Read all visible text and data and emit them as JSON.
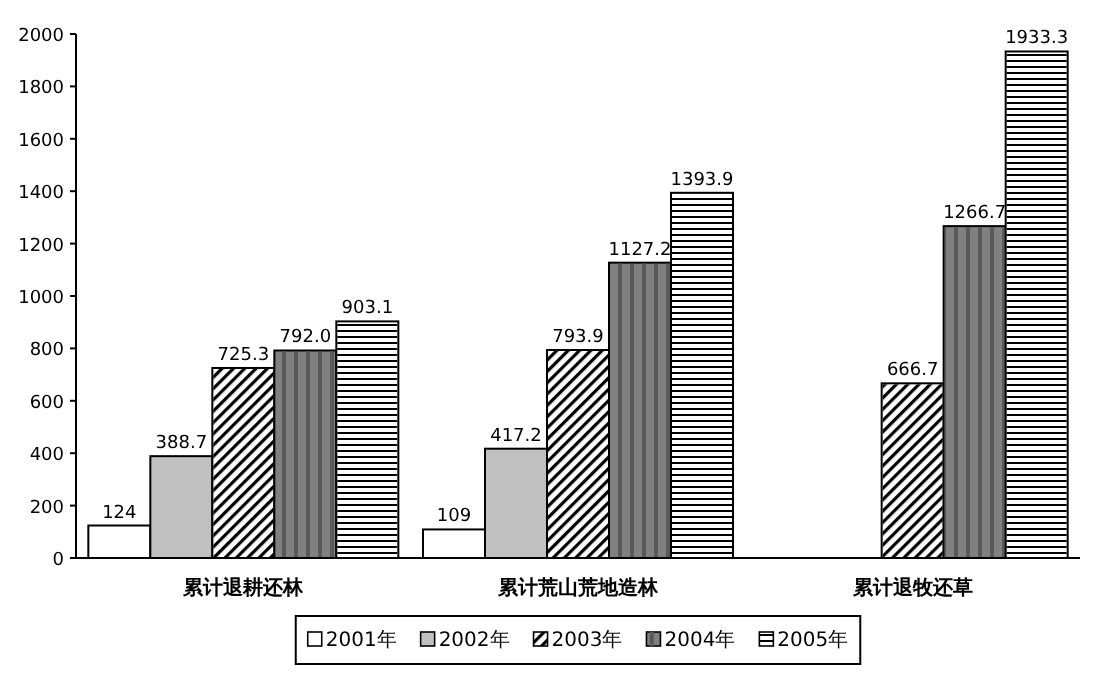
{
  "chart_data": {
    "type": "bar",
    "categories": [
      "累计退耕还林",
      "累计荒山荒地造林",
      "累计退牧还草"
    ],
    "series": [
      {
        "name": "2001年",
        "color": "#ffffff",
        "values": [
          124,
          109,
          null
        ],
        "value_labels": [
          "124",
          "109",
          null
        ]
      },
      {
        "name": "2002年",
        "color": "#c0c0c0",
        "values": [
          388.7,
          417.2,
          null
        ],
        "value_labels": [
          "388.7",
          "417.2",
          null
        ]
      },
      {
        "name": "2003年",
        "color": "#ffffff",
        "values": [
          725.3,
          793.9,
          666.7
        ],
        "value_labels": [
          "725.3",
          "793.9",
          "666.7"
        ]
      },
      {
        "name": "2004年",
        "color": "#808080",
        "values": [
          792.0,
          1127.2,
          1266.7
        ],
        "value_labels": [
          "792.0",
          "1127.2",
          "1266.7"
        ]
      },
      {
        "name": "2005年",
        "color": "#ffffff",
        "values": [
          903.1,
          1393.9,
          1933.3
        ],
        "value_labels": [
          "903.1",
          "1393.9",
          "1933.3"
        ]
      }
    ],
    "ylim": [
      0,
      2000
    ],
    "yticks": [
      0,
      200,
      400,
      600,
      800,
      1000,
      1200,
      1400,
      1600,
      1800,
      2000
    ],
    "grid": false,
    "legend": "bottom"
  }
}
